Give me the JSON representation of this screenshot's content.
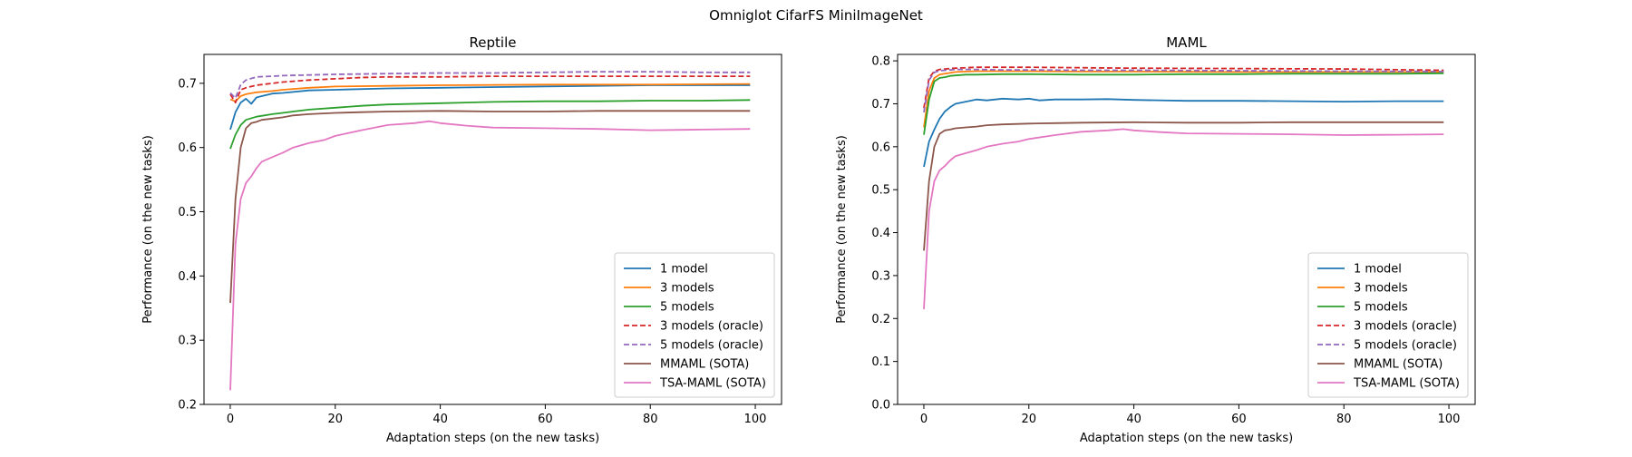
{
  "suptitle": "Omniglot CifarFS MiniImageNet",
  "chart_data": [
    {
      "type": "line",
      "title": "Reptile",
      "xlabel": "Adaptation steps (on the new tasks)",
      "ylabel": "Performance (on the new tasks)",
      "xlim": [
        -5,
        105
      ],
      "ylim": [
        0.2,
        0.745
      ],
      "xticks": [
        0,
        20,
        40,
        60,
        80,
        100
      ],
      "yticks": [
        0.2,
        0.3,
        0.4,
        0.5,
        0.6,
        0.7
      ],
      "legend_position": "lower-right",
      "series": [
        {
          "name": "1 model",
          "color": "#1f77b4",
          "dash": "solid",
          "x": [
            0,
            1,
            2,
            3,
            4,
            5,
            6,
            8,
            10,
            15,
            20,
            30,
            40,
            60,
            80,
            99
          ],
          "y": [
            0.628,
            0.655,
            0.67,
            0.676,
            0.668,
            0.678,
            0.68,
            0.684,
            0.685,
            0.689,
            0.69,
            0.692,
            0.693,
            0.695,
            0.697,
            0.697
          ]
        },
        {
          "name": "3 models",
          "color": "#ff7f0e",
          "dash": "solid",
          "x": [
            0,
            1,
            2,
            3,
            5,
            8,
            10,
            15,
            20,
            30,
            40,
            60,
            80,
            99
          ],
          "y": [
            0.675,
            0.672,
            0.68,
            0.683,
            0.686,
            0.688,
            0.69,
            0.693,
            0.695,
            0.696,
            0.697,
            0.698,
            0.698,
            0.699
          ]
        },
        {
          "name": "5 models",
          "color": "#2ca02c",
          "dash": "solid",
          "x": [
            0,
            1,
            2,
            3,
            5,
            8,
            10,
            12,
            15,
            20,
            25,
            30,
            40,
            50,
            60,
            70,
            80,
            90,
            99
          ],
          "y": [
            0.598,
            0.62,
            0.635,
            0.643,
            0.648,
            0.652,
            0.654,
            0.656,
            0.659,
            0.662,
            0.665,
            0.667,
            0.669,
            0.671,
            0.672,
            0.672,
            0.673,
            0.673,
            0.674
          ]
        },
        {
          "name": "3 models (oracle)",
          "color": "#d62728",
          "dash": "dashed",
          "x": [
            0,
            1,
            2,
            3,
            5,
            8,
            10,
            15,
            20,
            25,
            30,
            40,
            50,
            60,
            80,
            99
          ],
          "y": [
            0.683,
            0.67,
            0.69,
            0.693,
            0.697,
            0.7,
            0.702,
            0.705,
            0.707,
            0.709,
            0.71,
            0.71,
            0.711,
            0.711,
            0.711,
            0.711
          ]
        },
        {
          "name": "5 models (oracle)",
          "color": "#9467bd",
          "dash": "dashed",
          "x": [
            0,
            1,
            2,
            3,
            5,
            8,
            10,
            15,
            20,
            30,
            40,
            50,
            60,
            70,
            80,
            90,
            99
          ],
          "y": [
            0.685,
            0.677,
            0.698,
            0.705,
            0.71,
            0.711,
            0.712,
            0.713,
            0.714,
            0.715,
            0.716,
            0.716,
            0.717,
            0.718,
            0.718,
            0.717,
            0.717
          ]
        },
        {
          "name": "MMAML (SOTA)",
          "color": "#8c564b",
          "dash": "solid",
          "x": [
            0,
            1,
            2,
            3,
            4,
            5,
            6,
            8,
            10,
            12,
            15,
            20,
            25,
            30,
            40,
            50,
            60,
            70,
            80,
            90,
            99
          ],
          "y": [
            0.358,
            0.52,
            0.6,
            0.63,
            0.638,
            0.64,
            0.643,
            0.645,
            0.647,
            0.65,
            0.652,
            0.654,
            0.655,
            0.656,
            0.657,
            0.656,
            0.656,
            0.657,
            0.657,
            0.657,
            0.657
          ]
        },
        {
          "name": "TSA-MAML (SOTA)",
          "color": "#e377c2",
          "dash": "solid",
          "x": [
            0,
            1,
            2,
            3,
            4,
            5,
            6,
            8,
            10,
            12,
            15,
            18,
            20,
            25,
            30,
            35,
            38,
            40,
            45,
            50,
            60,
            70,
            80,
            90,
            99
          ],
          "y": [
            0.222,
            0.45,
            0.52,
            0.545,
            0.555,
            0.568,
            0.578,
            0.585,
            0.592,
            0.6,
            0.607,
            0.612,
            0.618,
            0.627,
            0.635,
            0.638,
            0.641,
            0.638,
            0.634,
            0.631,
            0.63,
            0.629,
            0.627,
            0.628,
            0.629
          ]
        }
      ]
    },
    {
      "type": "line",
      "title": "MAML",
      "xlabel": "Adaptation steps (on the new tasks)",
      "ylabel": "Performance (on the new tasks)",
      "xlim": [
        -5,
        105
      ],
      "ylim": [
        0.0,
        0.815
      ],
      "xticks": [
        0,
        20,
        40,
        60,
        80,
        100
      ],
      "yticks": [
        0.0,
        0.1,
        0.2,
        0.3,
        0.4,
        0.5,
        0.6,
        0.7,
        0.8
      ],
      "legend_position": "lower-right",
      "series": [
        {
          "name": "1 model",
          "color": "#1f77b4",
          "dash": "solid",
          "x": [
            0,
            1,
            2,
            3,
            4,
            5,
            6,
            8,
            10,
            12,
            15,
            18,
            20,
            22,
            25,
            30,
            35,
            40,
            50,
            60,
            70,
            80,
            90,
            99
          ],
          "y": [
            0.553,
            0.612,
            0.64,
            0.665,
            0.682,
            0.692,
            0.7,
            0.705,
            0.71,
            0.708,
            0.712,
            0.71,
            0.712,
            0.708,
            0.71,
            0.71,
            0.711,
            0.709,
            0.707,
            0.707,
            0.706,
            0.705,
            0.706,
            0.706
          ]
        },
        {
          "name": "3 models",
          "color": "#ff7f0e",
          "dash": "solid",
          "x": [
            0,
            1,
            2,
            3,
            4,
            5,
            6,
            8,
            10,
            15,
            20,
            30,
            40,
            60,
            80,
            99
          ],
          "y": [
            0.645,
            0.73,
            0.76,
            0.768,
            0.77,
            0.772,
            0.774,
            0.775,
            0.776,
            0.776,
            0.776,
            0.775,
            0.775,
            0.774,
            0.774,
            0.774
          ]
        },
        {
          "name": "5 models",
          "color": "#2ca02c",
          "dash": "solid",
          "x": [
            0,
            1,
            2,
            3,
            4,
            5,
            6,
            8,
            10,
            15,
            20,
            30,
            40,
            50,
            60,
            70,
            80,
            90,
            99
          ],
          "y": [
            0.628,
            0.71,
            0.752,
            0.76,
            0.762,
            0.765,
            0.766,
            0.768,
            0.768,
            0.769,
            0.769,
            0.768,
            0.768,
            0.769,
            0.769,
            0.77,
            0.77,
            0.77,
            0.771
          ]
        },
        {
          "name": "3 models (oracle)",
          "color": "#d62728",
          "dash": "dashed",
          "x": [
            0,
            1,
            2,
            3,
            4,
            5,
            6,
            8,
            10,
            15,
            20,
            30,
            40,
            60,
            80,
            99
          ],
          "y": [
            0.69,
            0.76,
            0.776,
            0.78,
            0.781,
            0.782,
            0.783,
            0.784,
            0.785,
            0.785,
            0.785,
            0.784,
            0.783,
            0.782,
            0.781,
            0.778
          ]
        },
        {
          "name": "5 models (oracle)",
          "color": "#9467bd",
          "dash": "dashed",
          "x": [
            0,
            1,
            2,
            3,
            4,
            5,
            6,
            8,
            10,
            15,
            20,
            30,
            40,
            60,
            80,
            99
          ],
          "y": [
            0.68,
            0.755,
            0.773,
            0.777,
            0.778,
            0.779,
            0.78,
            0.78,
            0.78,
            0.779,
            0.779,
            0.778,
            0.778,
            0.777,
            0.776,
            0.775
          ]
        },
        {
          "name": "MMAML (SOTA)",
          "color": "#8c564b",
          "dash": "solid",
          "x": [
            0,
            1,
            2,
            3,
            4,
            5,
            6,
            8,
            10,
            12,
            15,
            20,
            25,
            30,
            40,
            50,
            60,
            70,
            80,
            90,
            99
          ],
          "y": [
            0.358,
            0.52,
            0.6,
            0.63,
            0.638,
            0.64,
            0.643,
            0.645,
            0.647,
            0.65,
            0.652,
            0.654,
            0.655,
            0.656,
            0.657,
            0.656,
            0.656,
            0.657,
            0.657,
            0.657,
            0.657
          ]
        },
        {
          "name": "TSA-MAML (SOTA)",
          "color": "#e377c2",
          "dash": "solid",
          "x": [
            0,
            1,
            2,
            3,
            4,
            5,
            6,
            8,
            10,
            12,
            15,
            18,
            20,
            25,
            30,
            35,
            38,
            40,
            45,
            50,
            60,
            70,
            80,
            90,
            99
          ],
          "y": [
            0.222,
            0.45,
            0.52,
            0.545,
            0.555,
            0.568,
            0.578,
            0.585,
            0.592,
            0.6,
            0.607,
            0.612,
            0.618,
            0.627,
            0.635,
            0.638,
            0.641,
            0.638,
            0.634,
            0.631,
            0.63,
            0.629,
            0.627,
            0.628,
            0.629
          ]
        }
      ]
    }
  ]
}
